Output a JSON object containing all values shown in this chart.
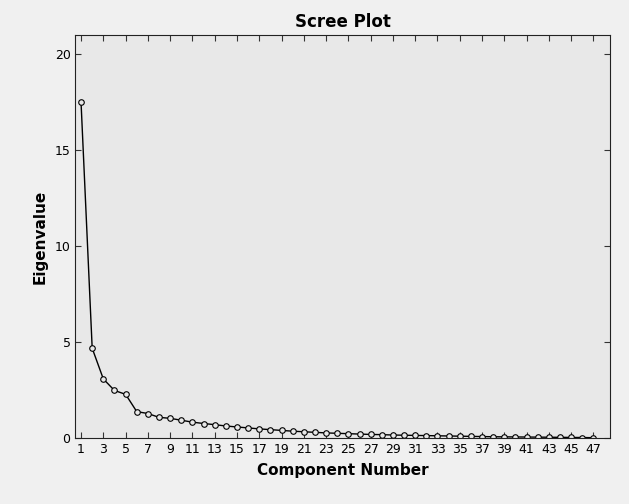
{
  "title": "Scree Plot",
  "xlabel": "Component Number",
  "ylabel": "Eigenvalue",
  "outer_bg": "#f0f0f0",
  "plot_bg": "#e8e8e8",
  "line_color": "#000000",
  "marker_style": "o",
  "marker_facecolor": "#e8e8e8",
  "marker_edgecolor": "#000000",
  "marker_size": 4,
  "line_width": 1.0,
  "ylim": [
    0,
    21
  ],
  "xlim": [
    0.5,
    48.5
  ],
  "yticks": [
    0,
    5,
    10,
    15,
    20
  ],
  "xticks": [
    1,
    3,
    5,
    7,
    9,
    11,
    13,
    15,
    17,
    19,
    21,
    23,
    25,
    27,
    29,
    31,
    33,
    35,
    37,
    39,
    41,
    43,
    45,
    47
  ],
  "eigenvalues": [
    17.5,
    4.7,
    3.1,
    2.5,
    2.3,
    1.4,
    1.3,
    1.1,
    1.05,
    0.95,
    0.85,
    0.78,
    0.72,
    0.65,
    0.6,
    0.55,
    0.5,
    0.46,
    0.42,
    0.38,
    0.35,
    0.32,
    0.29,
    0.27,
    0.25,
    0.23,
    0.21,
    0.2,
    0.18,
    0.17,
    0.16,
    0.15,
    0.14,
    0.13,
    0.12,
    0.11,
    0.1,
    0.09,
    0.085,
    0.08,
    0.075,
    0.07,
    0.065,
    0.06,
    0.055,
    0.05,
    0.04
  ],
  "title_fontsize": 12,
  "label_fontsize": 11,
  "tick_fontsize": 9,
  "title_fontweight": "bold",
  "label_fontweight": "bold"
}
